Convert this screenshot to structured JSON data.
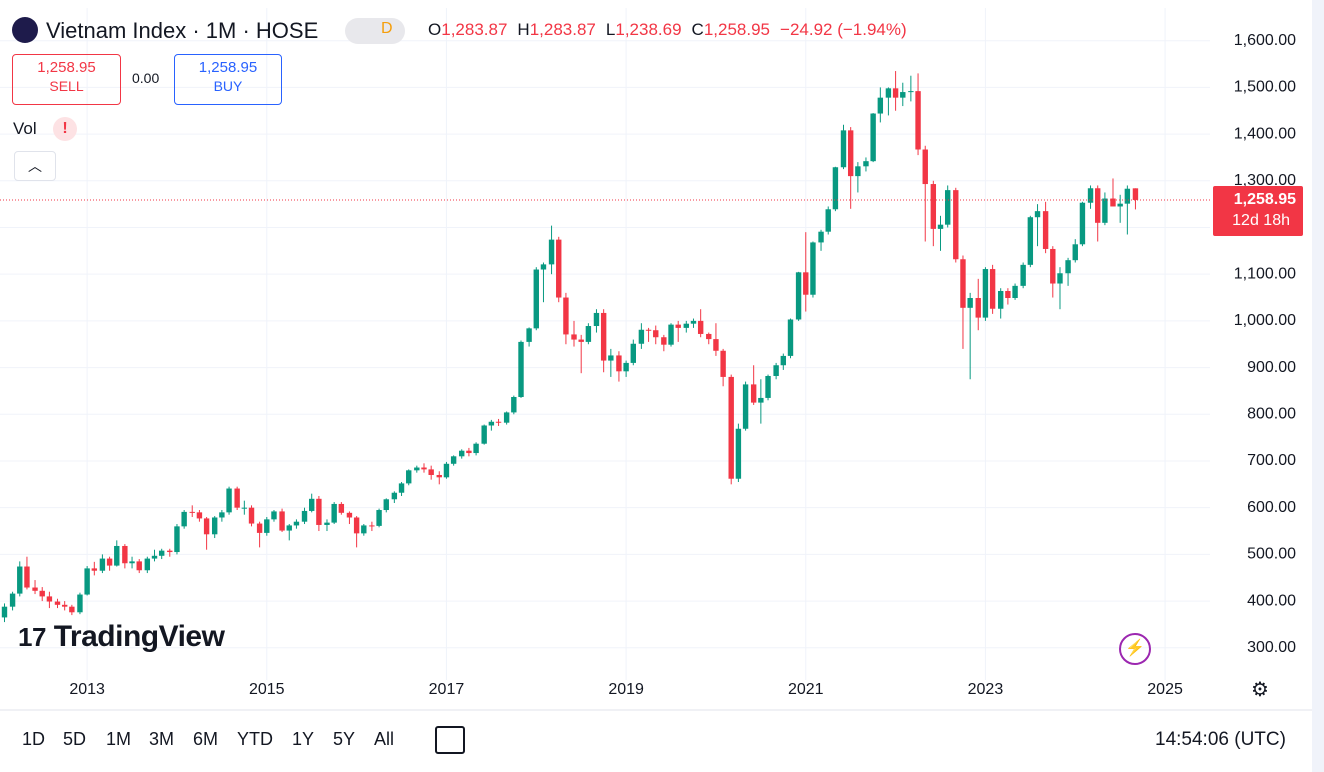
{
  "header": {
    "symbol": "Vietnam Index · 1M · HOSE",
    "badge": "D",
    "ohlc": [
      {
        "key": "O",
        "value": "1,283.87"
      },
      {
        "key": "H",
        "value": "1,283.87"
      },
      {
        "key": "L",
        "value": "1,238.69"
      },
      {
        "key": "C",
        "value": "1,258.95"
      }
    ],
    "change": "−24.92 (−1.94%)"
  },
  "trade": {
    "sell_price": "1,258.95",
    "sell": "SELL",
    "spread": "0.00",
    "buy_price": "1,258.95",
    "buy": "BUY"
  },
  "indicator": {
    "name": "Vol",
    "alert": "!"
  },
  "logo": "TradingView",
  "ranges": [
    "1D",
    "5D",
    "1M",
    "3M",
    "6M",
    "YTD",
    "1Y",
    "5Y",
    "All"
  ],
  "clock": "14:54:06 (UTC)",
  "chart_data": {
    "type": "candlestick",
    "up_color": "#089981",
    "down_color": "#f23645",
    "grid": true,
    "last_price": {
      "value": 1258.95,
      "label": "1,258.95",
      "countdown": "12d 18h"
    },
    "xlim": [
      2012.03,
      2025.5
    ],
    "xticks": [
      2013,
      2015,
      2017,
      2019,
      2021,
      2023,
      2025
    ],
    "ylim": [
      231,
      1670
    ],
    "yticks": [
      {
        "value": 300,
        "label": "300.00"
      },
      {
        "value": 400,
        "label": "400.00"
      },
      {
        "value": 500,
        "label": "500.00"
      },
      {
        "value": 600,
        "label": "600.00"
      },
      {
        "value": 700,
        "label": "700.00"
      },
      {
        "value": 800,
        "label": "800.00"
      },
      {
        "value": 900,
        "label": "900.00"
      },
      {
        "value": 1000,
        "label": "1,000.00"
      },
      {
        "value": 1100,
        "label": "1,100.00"
      },
      {
        "value": 1200,
        "label": "1,200.00"
      },
      {
        "value": 1300,
        "label": "1,300.00"
      },
      {
        "value": 1400,
        "label": "1,400.00"
      },
      {
        "value": 1500,
        "label": "1,500.00"
      },
      {
        "value": 1600,
        "label": "1,600.00"
      }
    ],
    "x": [
      2012.08,
      2012.17,
      2012.25,
      2012.33,
      2012.42,
      2012.5,
      2012.58,
      2012.67,
      2012.75,
      2012.83,
      2012.92,
      2013,
      2013.08,
      2013.17,
      2013.25,
      2013.33,
      2013.42,
      2013.5,
      2013.58,
      2013.67,
      2013.75,
      2013.83,
      2013.92,
      2014,
      2014.08,
      2014.17,
      2014.25,
      2014.33,
      2014.42,
      2014.5,
      2014.58,
      2014.67,
      2014.75,
      2014.83,
      2014.92,
      2015,
      2015.08,
      2015.17,
      2015.25,
      2015.33,
      2015.42,
      2015.5,
      2015.58,
      2015.67,
      2015.75,
      2015.83,
      2015.92,
      2016,
      2016.08,
      2016.17,
      2016.25,
      2016.33,
      2016.42,
      2016.5,
      2016.58,
      2016.67,
      2016.75,
      2016.83,
      2016.92,
      2017,
      2017.08,
      2017.17,
      2017.25,
      2017.33,
      2017.42,
      2017.5,
      2017.58,
      2017.67,
      2017.75,
      2017.83,
      2017.92,
      2018,
      2018.08,
      2018.17,
      2018.25,
      2018.33,
      2018.42,
      2018.5,
      2018.58,
      2018.67,
      2018.75,
      2018.83,
      2018.92,
      2019,
      2019.08,
      2019.17,
      2019.25,
      2019.33,
      2019.42,
      2019.5,
      2019.58,
      2019.67,
      2019.75,
      2019.83,
      2019.92,
      2020,
      2020.08,
      2020.17,
      2020.25,
      2020.33,
      2020.42,
      2020.5,
      2020.58,
      2020.67,
      2020.75,
      2020.83,
      2020.92,
      2021,
      2021.08,
      2021.17,
      2021.25,
      2021.33,
      2021.42,
      2021.5,
      2021.58,
      2021.67,
      2021.75,
      2021.83,
      2021.92,
      2022,
      2022.08,
      2022.17,
      2022.25,
      2022.33,
      2022.42,
      2022.5,
      2022.58,
      2022.67,
      2022.75,
      2022.83,
      2022.92,
      2023,
      2023.08,
      2023.17,
      2023.25,
      2023.33,
      2023.42,
      2023.5,
      2023.58,
      2023.67,
      2023.75,
      2023.83,
      2023.92,
      2024,
      2024.08,
      2024.17,
      2024.25,
      2024.33,
      2024.42,
      2024.5,
      2024.58,
      2024.67
    ],
    "ohlc": [
      [
        365,
        395,
        355,
        388
      ],
      [
        388,
        420,
        380,
        416
      ],
      [
        416,
        485,
        410,
        474
      ],
      [
        474,
        495,
        425,
        429
      ],
      [
        429,
        445,
        415,
        422
      ],
      [
        422,
        430,
        400,
        410
      ],
      [
        410,
        420,
        385,
        399
      ],
      [
        399,
        405,
        385,
        392
      ],
      [
        392,
        400,
        380,
        388
      ],
      [
        388,
        392,
        370,
        376
      ],
      [
        376,
        418,
        372,
        414
      ],
      [
        414,
        475,
        412,
        470
      ],
      [
        470,
        484,
        455,
        465
      ],
      [
        465,
        500,
        460,
        491
      ],
      [
        491,
        495,
        465,
        476
      ],
      [
        476,
        530,
        474,
        518
      ],
      [
        518,
        522,
        470,
        481
      ],
      [
        481,
        495,
        470,
        485
      ],
      [
        485,
        490,
        460,
        466
      ],
      [
        466,
        495,
        460,
        491
      ],
      [
        491,
        510,
        485,
        497
      ],
      [
        497,
        512,
        490,
        508
      ],
      [
        508,
        512,
        495,
        505
      ],
      [
        505,
        565,
        500,
        560
      ],
      [
        560,
        595,
        555,
        591
      ],
      [
        591,
        605,
        580,
        590
      ],
      [
        590,
        595,
        570,
        577
      ],
      [
        577,
        580,
        510,
        543
      ],
      [
        543,
        582,
        535,
        579
      ],
      [
        579,
        595,
        570,
        590
      ],
      [
        590,
        645,
        585,
        641
      ],
      [
        641,
        645,
        595,
        600
      ],
      [
        600,
        615,
        585,
        600
      ],
      [
        600,
        605,
        560,
        566
      ],
      [
        566,
        570,
        515,
        546
      ],
      [
        546,
        580,
        540,
        575
      ],
      [
        575,
        595,
        570,
        592
      ],
      [
        592,
        598,
        548,
        551
      ],
      [
        551,
        565,
        530,
        562
      ],
      [
        562,
        575,
        555,
        570
      ],
      [
        570,
        600,
        565,
        593
      ],
      [
        593,
        630,
        590,
        619
      ],
      [
        619,
        625,
        550,
        563
      ],
      [
        563,
        575,
        550,
        568
      ],
      [
        568,
        612,
        565,
        608
      ],
      [
        608,
        612,
        585,
        589
      ],
      [
        589,
        592,
        565,
        579
      ],
      [
        579,
        582,
        515,
        545
      ],
      [
        545,
        565,
        540,
        562
      ],
      [
        562,
        570,
        550,
        561
      ],
      [
        561,
        598,
        558,
        595
      ],
      [
        595,
        620,
        590,
        618
      ],
      [
        618,
        635,
        610,
        632
      ],
      [
        632,
        655,
        625,
        652
      ],
      [
        652,
        682,
        648,
        680
      ],
      [
        680,
        690,
        675,
        686
      ],
      [
        686,
        695,
        675,
        682
      ],
      [
        682,
        690,
        660,
        670
      ],
      [
        670,
        678,
        650,
        665
      ],
      [
        665,
        698,
        662,
        694
      ],
      [
        694,
        712,
        690,
        710
      ],
      [
        710,
        725,
        705,
        722
      ],
      [
        722,
        728,
        710,
        717
      ],
      [
        717,
        740,
        712,
        737
      ],
      [
        737,
        778,
        735,
        776
      ],
      [
        776,
        788,
        765,
        784
      ],
      [
        784,
        790,
        775,
        782
      ],
      [
        782,
        806,
        778,
        804
      ],
      [
        804,
        840,
        800,
        837
      ],
      [
        837,
        958,
        835,
        955
      ],
      [
        955,
        986,
        945,
        984
      ],
      [
        984,
        1115,
        980,
        1110
      ],
      [
        1110,
        1125,
        1040,
        1121
      ],
      [
        1121,
        1204,
        1100,
        1174
      ],
      [
        1174,
        1180,
        1040,
        1050
      ],
      [
        1050,
        1060,
        950,
        971
      ],
      [
        971,
        1000,
        945,
        960
      ],
      [
        960,
        970,
        888,
        955
      ],
      [
        955,
        995,
        950,
        989
      ],
      [
        989,
        1025,
        975,
        1017
      ],
      [
        1017,
        1025,
        890,
        915
      ],
      [
        915,
        940,
        880,
        926
      ],
      [
        926,
        935,
        870,
        892
      ],
      [
        892,
        915,
        880,
        910
      ],
      [
        910,
        960,
        905,
        951
      ],
      [
        951,
        995,
        940,
        981
      ],
      [
        981,
        985,
        955,
        980
      ],
      [
        980,
        990,
        950,
        965
      ],
      [
        965,
        970,
        935,
        949
      ],
      [
        949,
        995,
        945,
        992
      ],
      [
        992,
        1000,
        955,
        985
      ],
      [
        985,
        1000,
        975,
        994
      ],
      [
        994,
        1005,
        985,
        1000
      ],
      [
        1000,
        1025,
        965,
        972
      ],
      [
        972,
        975,
        950,
        961
      ],
      [
        961,
        995,
        925,
        936
      ],
      [
        936,
        940,
        860,
        880
      ],
      [
        880,
        885,
        650,
        662
      ],
      [
        662,
        780,
        655,
        769
      ],
      [
        769,
        870,
        765,
        864
      ],
      [
        864,
        905,
        820,
        825
      ],
      [
        825,
        875,
        780,
        835
      ],
      [
        835,
        885,
        830,
        882
      ],
      [
        882,
        910,
        875,
        905
      ],
      [
        905,
        930,
        895,
        925
      ],
      [
        925,
        1005,
        920,
        1003
      ],
      [
        1003,
        1105,
        1000,
        1104
      ],
      [
        1104,
        1190,
        1020,
        1056
      ],
      [
        1056,
        1170,
        1050,
        1168
      ],
      [
        1168,
        1195,
        1150,
        1191
      ],
      [
        1191,
        1245,
        1185,
        1239
      ],
      [
        1239,
        1330,
        1235,
        1329
      ],
      [
        1329,
        1420,
        1325,
        1408
      ],
      [
        1408,
        1415,
        1240,
        1310
      ],
      [
        1310,
        1340,
        1275,
        1331
      ],
      [
        1331,
        1350,
        1320,
        1342
      ],
      [
        1342,
        1445,
        1340,
        1444
      ],
      [
        1444,
        1500,
        1425,
        1478
      ],
      [
        1478,
        1500,
        1440,
        1498
      ],
      [
        1498,
        1535,
        1450,
        1478
      ],
      [
        1478,
        1510,
        1460,
        1490
      ],
      [
        1490,
        1525,
        1470,
        1492
      ],
      [
        1492,
        1530,
        1355,
        1367
      ],
      [
        1367,
        1375,
        1170,
        1293
      ],
      [
        1293,
        1300,
        1160,
        1197
      ],
      [
        1197,
        1225,
        1150,
        1206
      ],
      [
        1206,
        1290,
        1200,
        1280
      ],
      [
        1280,
        1285,
        1125,
        1132
      ],
      [
        1132,
        1140,
        940,
        1028
      ],
      [
        1028,
        1060,
        875,
        1049
      ],
      [
        1049,
        1090,
        980,
        1007
      ],
      [
        1007,
        1115,
        1000,
        1111
      ],
      [
        1111,
        1120,
        1015,
        1026
      ],
      [
        1026,
        1070,
        1005,
        1064
      ],
      [
        1064,
        1070,
        1035,
        1049
      ],
      [
        1049,
        1080,
        1045,
        1075
      ],
      [
        1075,
        1125,
        1070,
        1120
      ],
      [
        1120,
        1225,
        1115,
        1222
      ],
      [
        1222,
        1250,
        1160,
        1235
      ],
      [
        1235,
        1255,
        1145,
        1154
      ],
      [
        1154,
        1160,
        1050,
        1080
      ],
      [
        1080,
        1115,
        1025,
        1102
      ],
      [
        1102,
        1135,
        1075,
        1130
      ],
      [
        1130,
        1175,
        1125,
        1164
      ],
      [
        1164,
        1255,
        1160,
        1253
      ],
      [
        1253,
        1290,
        1240,
        1284
      ],
      [
        1284,
        1290,
        1170,
        1210
      ],
      [
        1210,
        1275,
        1205,
        1262
      ],
      [
        1262,
        1305,
        1245,
        1245
      ],
      [
        1245,
        1270,
        1210,
        1251
      ],
      [
        1251,
        1290,
        1185,
        1283
      ],
      [
        1283.87,
        1283.87,
        1238.69,
        1258.95
      ]
    ]
  }
}
